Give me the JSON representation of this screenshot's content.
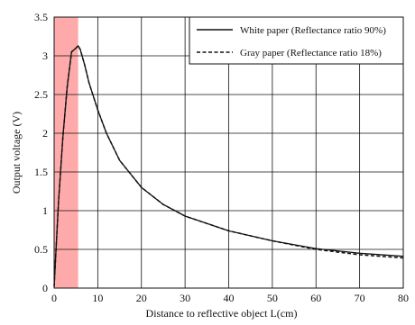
{
  "chart_data": {
    "type": "line",
    "title": "",
    "xlabel": "Distance to reflective object L(cm)",
    "ylabel": "Output voltage (V)",
    "xlim": [
      0,
      80
    ],
    "ylim": [
      0,
      3.5
    ],
    "x_ticks": [
      "0",
      "10",
      "20",
      "30",
      "40",
      "50",
      "60",
      "70",
      "80"
    ],
    "y_ticks": [
      "0",
      "0.5",
      "1",
      "1.5",
      "2",
      "2.5",
      "3",
      "3.5"
    ],
    "grid": true,
    "legend_position": "top-right",
    "highlight_region": {
      "x_start": 0,
      "x_end": 5.5,
      "color": "#ffaaaa"
    },
    "series": [
      {
        "name": "White paper (Reflectance ratio 90%)",
        "style": "solid",
        "color": "#111111",
        "x": [
          0,
          1,
          2,
          3,
          4,
          5,
          5.5,
          6,
          7,
          8,
          10,
          12,
          15,
          20,
          25,
          30,
          40,
          50,
          60,
          70,
          80
        ],
        "y": [
          0.02,
          1.1,
          1.95,
          2.6,
          3.05,
          3.1,
          3.13,
          3.08,
          2.88,
          2.65,
          2.3,
          2.0,
          1.65,
          1.3,
          1.08,
          0.93,
          0.74,
          0.61,
          0.51,
          0.45,
          0.41
        ]
      },
      {
        "name": "Gray paper (Reflectance ratio 18%)",
        "style": "dashed",
        "color": "#111111",
        "x": [
          0,
          1,
          2,
          3,
          4,
          5,
          5.5,
          6,
          7,
          8,
          10,
          12,
          15,
          20,
          25,
          30,
          40,
          50,
          60,
          70,
          80
        ],
        "y": [
          0.02,
          1.1,
          1.95,
          2.6,
          3.05,
          3.1,
          3.13,
          3.08,
          2.88,
          2.65,
          2.3,
          2.0,
          1.65,
          1.3,
          1.08,
          0.93,
          0.74,
          0.61,
          0.5,
          0.43,
          0.39
        ]
      }
    ]
  }
}
